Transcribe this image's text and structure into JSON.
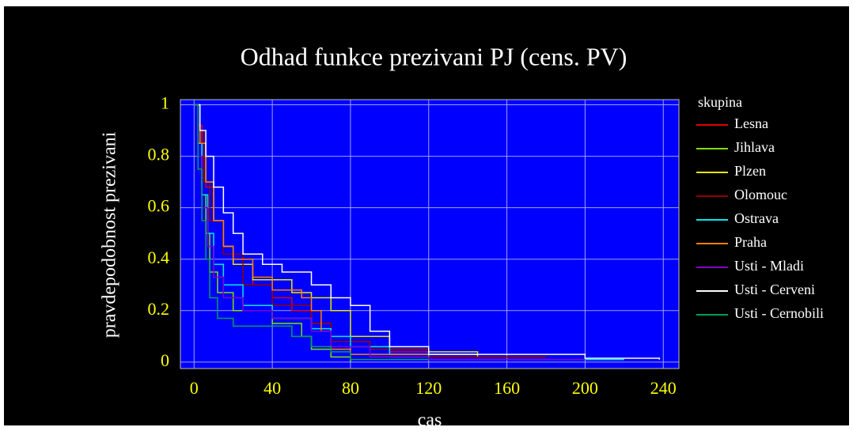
{
  "chart_data": {
    "type": "line",
    "step": true,
    "title": "Odhad funkce prezivani PJ (cens. PV)",
    "xlabel": "cas",
    "ylabel": "pravdepodobnost prezivani",
    "legend_title": "skupina",
    "xlim": [
      -7,
      248
    ],
    "ylim": [
      -0.025,
      1.02
    ],
    "xticks": [
      0,
      40,
      80,
      120,
      160,
      200,
      240
    ],
    "yticks": [
      0,
      0.2,
      0.4,
      0.6,
      0.8,
      1
    ],
    "grid": true,
    "series": [
      {
        "name": "Lesna",
        "color": "#e00000",
        "x": [
          0,
          2,
          4,
          6,
          10,
          15,
          20,
          30,
          40,
          50,
          60,
          70,
          80,
          90,
          100,
          120,
          180
        ],
        "values": [
          1,
          0.92,
          0.8,
          0.68,
          0.55,
          0.45,
          0.38,
          0.3,
          0.25,
          0.2,
          0.15,
          0.1,
          0.08,
          0.06,
          0.04,
          0.02,
          0.02
        ]
      },
      {
        "name": "Jihlava",
        "color": "#80e000",
        "x": [
          0,
          2,
          4,
          6,
          8,
          12,
          20,
          40,
          55,
          60,
          70,
          80
        ],
        "values": [
          1,
          0.85,
          0.65,
          0.5,
          0.35,
          0.27,
          0.2,
          0.15,
          0.1,
          0.05,
          0.02,
          0
        ]
      },
      {
        "name": "Plzen",
        "color": "#e8e800",
        "x": [
          0,
          3,
          6,
          10,
          15,
          20,
          30,
          50,
          60,
          70,
          80,
          100,
          120,
          145
        ],
        "values": [
          1,
          0.85,
          0.7,
          0.55,
          0.45,
          0.38,
          0.32,
          0.27,
          0.25,
          0.2,
          0.1,
          0.05,
          0.04,
          0.02
        ]
      },
      {
        "name": "Olomouc",
        "color": "#900000",
        "x": [
          0,
          2,
          5,
          8,
          15,
          25,
          40,
          60,
          70,
          90,
          120,
          180
        ],
        "values": [
          1,
          0.9,
          0.7,
          0.55,
          0.42,
          0.3,
          0.22,
          0.15,
          0.08,
          0.05,
          0.02,
          0.02
        ]
      },
      {
        "name": "Ostrava",
        "color": "#00e8e8",
        "x": [
          0,
          2,
          4,
          7,
          10,
          15,
          25,
          40,
          60,
          70,
          80,
          100,
          120,
          220
        ],
        "values": [
          1,
          0.85,
          0.65,
          0.5,
          0.38,
          0.3,
          0.22,
          0.17,
          0.13,
          0.1,
          0.06,
          0.03,
          0.01,
          0.01
        ]
      },
      {
        "name": "Praha",
        "color": "#ff8000",
        "x": [
          0,
          3,
          6,
          10,
          15,
          20,
          30,
          40,
          55,
          60,
          65,
          70,
          80,
          145
        ],
        "values": [
          1,
          0.85,
          0.7,
          0.55,
          0.45,
          0.4,
          0.33,
          0.28,
          0.25,
          0.2,
          0.12,
          0.05,
          0.03,
          0.03
        ]
      },
      {
        "name": "Usti - Mladi",
        "color": "#8000c8",
        "x": [
          0,
          2,
          4,
          7,
          10,
          15,
          25,
          40,
          60,
          70,
          90,
          120,
          200
        ],
        "values": [
          1,
          0.8,
          0.6,
          0.45,
          0.33,
          0.25,
          0.2,
          0.17,
          0.12,
          0.06,
          0.02,
          0.01,
          0.01
        ]
      },
      {
        "name": "Usti - Cerveni",
        "color": "#ffffff",
        "x": [
          0,
          3,
          6,
          10,
          15,
          20,
          25,
          35,
          45,
          60,
          70,
          80,
          90,
          100,
          120,
          200,
          238
        ],
        "values": [
          1,
          0.9,
          0.8,
          0.68,
          0.58,
          0.5,
          0.42,
          0.38,
          0.35,
          0.3,
          0.25,
          0.22,
          0.12,
          0.06,
          0.03,
          0.015,
          0.01
        ]
      },
      {
        "name": "Usti - Cernobili",
        "color": "#00a050",
        "x": [
          0,
          2,
          4,
          6,
          8,
          12,
          20,
          40,
          50,
          60,
          70,
          80,
          120
        ],
        "values": [
          1,
          0.75,
          0.55,
          0.4,
          0.25,
          0.17,
          0.14,
          0.14,
          0.1,
          0.06,
          0.04,
          0.01,
          0.01
        ]
      }
    ]
  }
}
